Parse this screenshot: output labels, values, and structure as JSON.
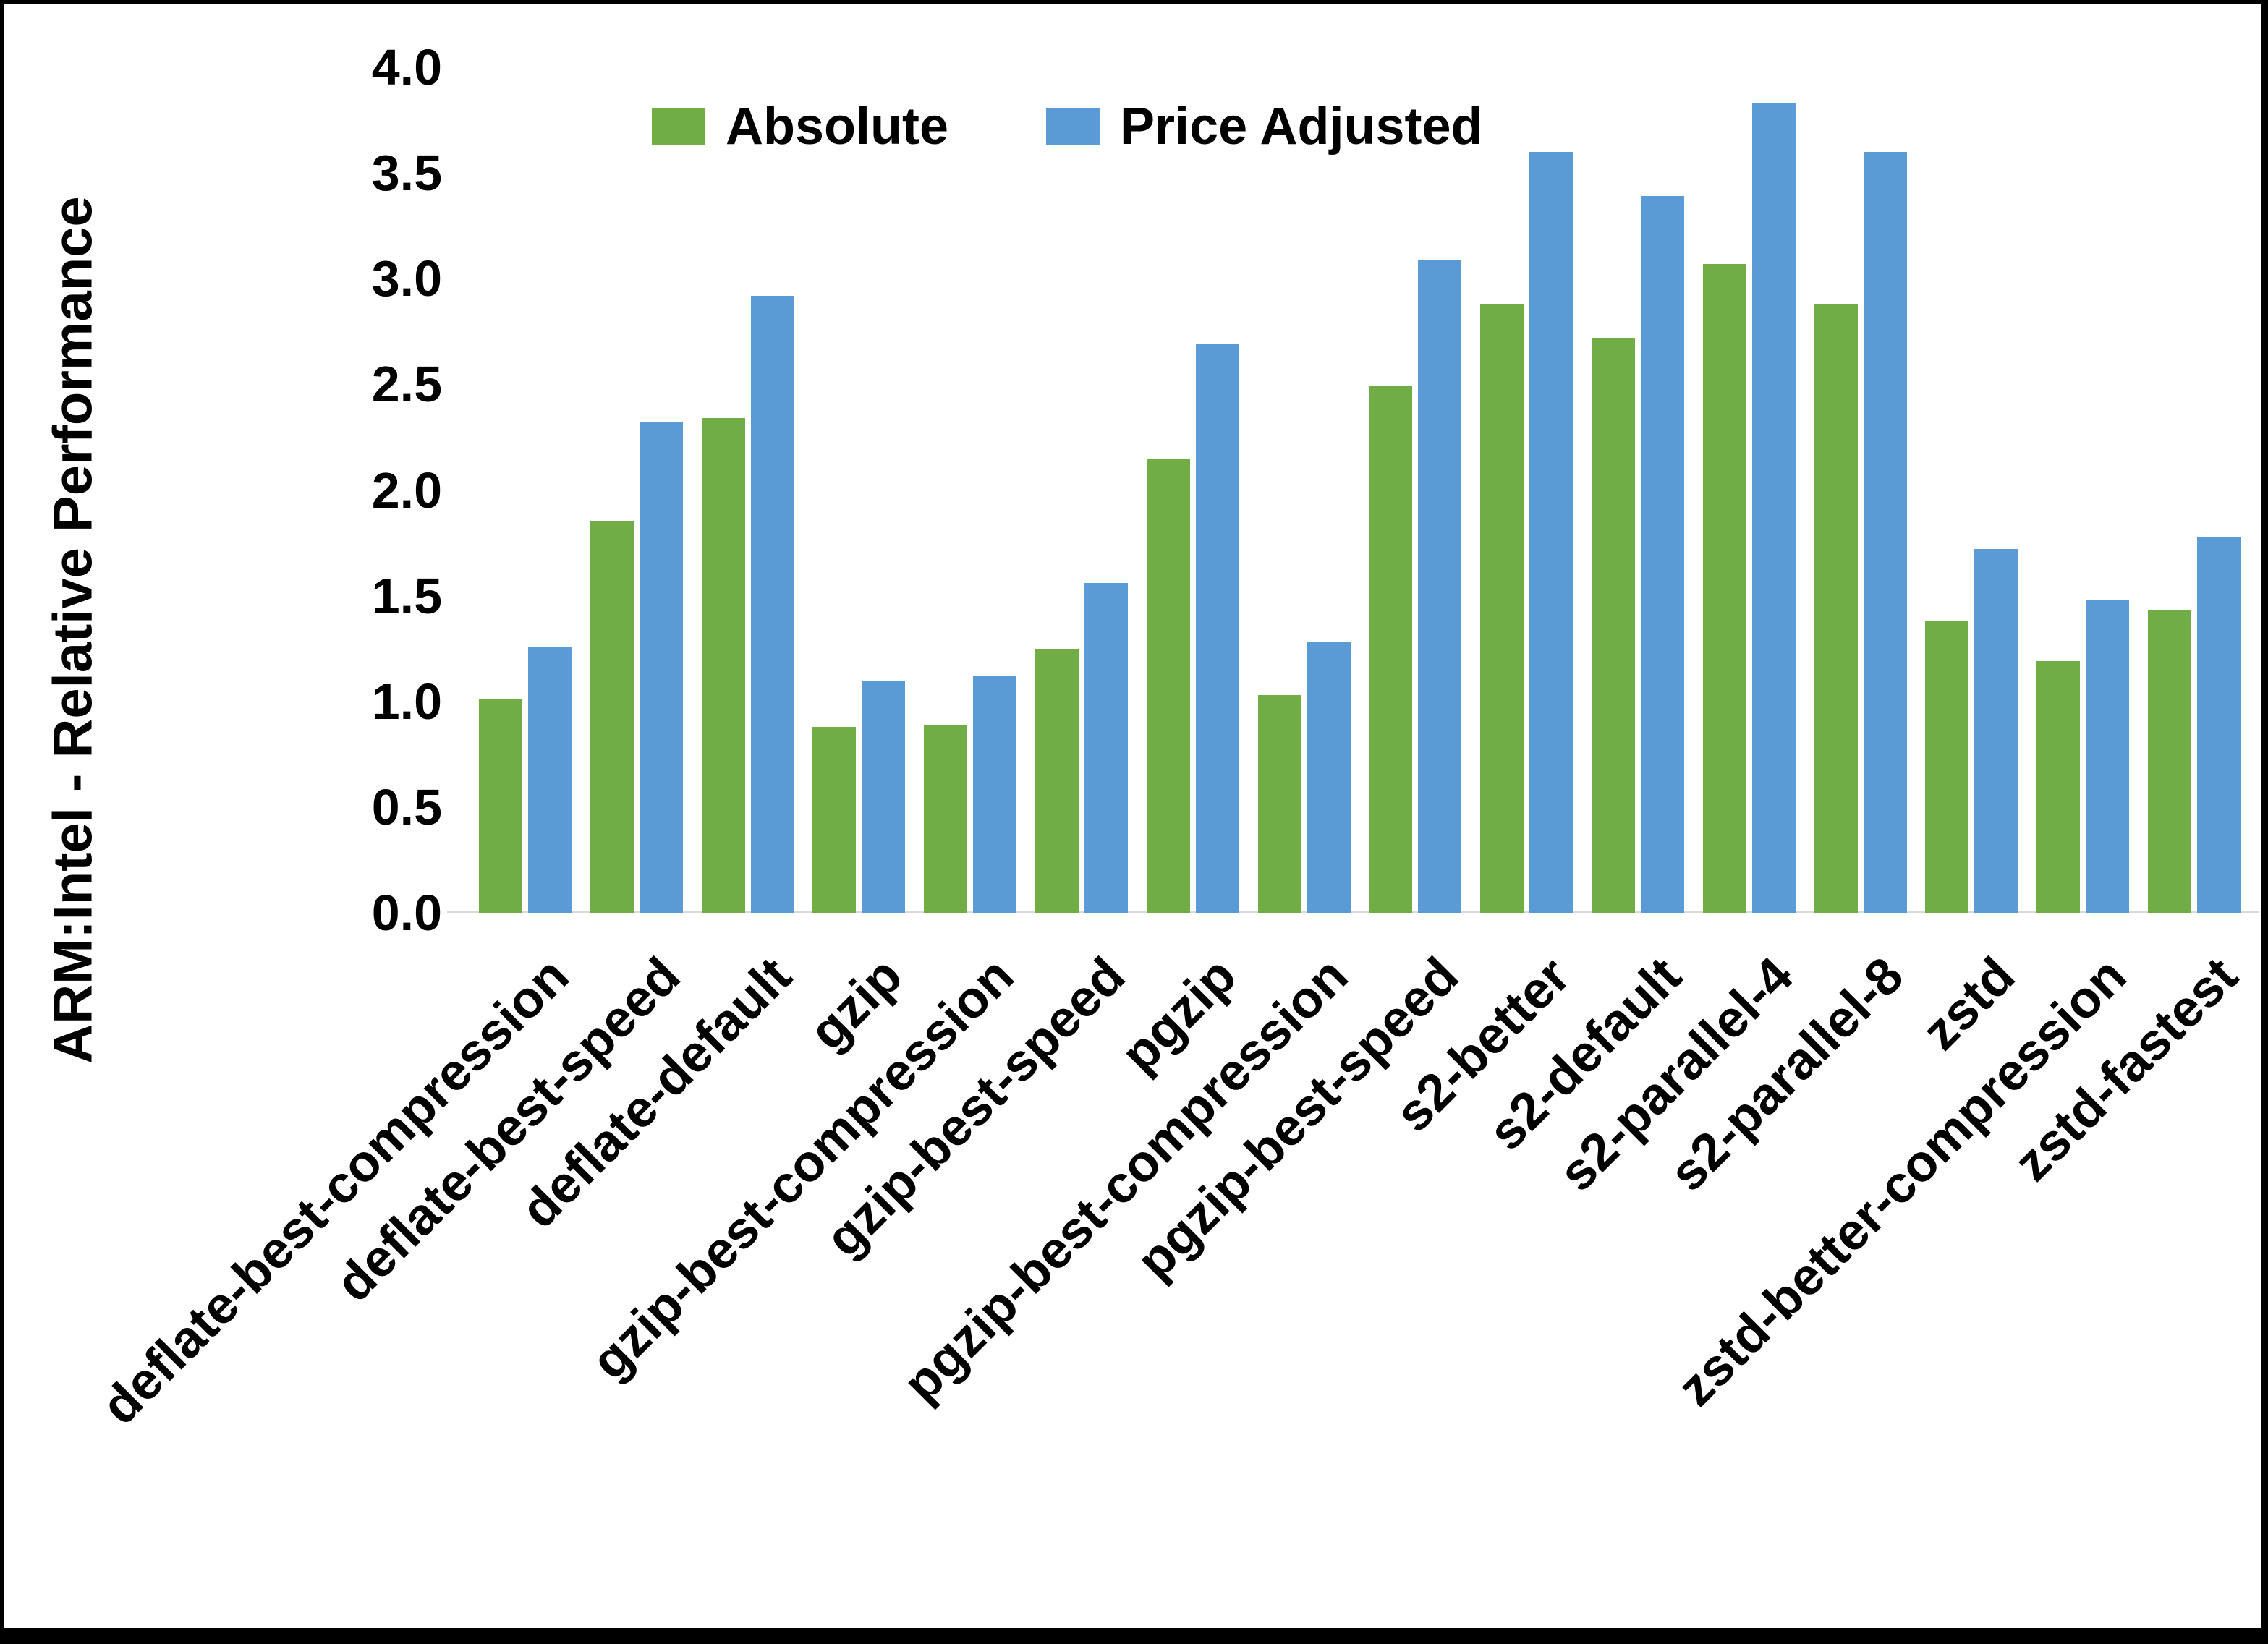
{
  "chart_data": {
    "type": "bar",
    "title": "",
    "xlabel": "",
    "ylabel": "ARM:Intel - Relative Performance",
    "ylim": [
      0.0,
      4.0
    ],
    "ytick_labels": [
      "0.0",
      "0.5",
      "1.0",
      "1.5",
      "2.0",
      "2.5",
      "3.0",
      "3.5",
      "4.0"
    ],
    "grid": false,
    "legend_position": "top-center",
    "categories": [
      "deflate-best-compression",
      "deflate-best-speed",
      "deflate-default",
      "gzip",
      "gzip-best-compression",
      "gzip-best-speed",
      "pgzip",
      "pgzip-best-compression",
      "pgzip-best-speed",
      "s2-better",
      "s2-default",
      "s2-parallel-4",
      "s2-parallel-8",
      "zstd",
      "zstd-better-compression",
      "zstd-fastest"
    ],
    "series": [
      {
        "name": "Absolute",
        "color": "#70AD47",
        "values": [
          1.01,
          1.85,
          2.34,
          0.88,
          0.89,
          1.25,
          2.15,
          1.03,
          2.49,
          2.88,
          2.72,
          3.07,
          2.88,
          1.38,
          1.19,
          1.43
        ]
      },
      {
        "name": "Price Adjusted",
        "color": "#5B9BD5",
        "values": [
          1.26,
          2.32,
          2.92,
          1.1,
          1.12,
          1.56,
          2.69,
          1.28,
          3.09,
          3.6,
          3.39,
          3.83,
          3.6,
          1.72,
          1.48,
          1.78
        ]
      }
    ],
    "axis_line_color": "#d9d9d9",
    "text_color": "#000000"
  }
}
